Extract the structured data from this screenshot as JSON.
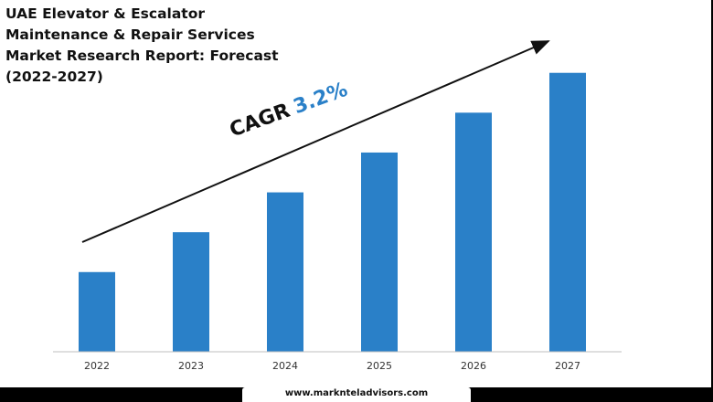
{
  "title_lines": [
    "UAE Elevator & Escalator",
    "Maintenance & Repair Services",
    "Market Research Report: Forecast",
    "(2022-2027)"
  ],
  "cagr": {
    "label": "CAGR",
    "value": "3.2%"
  },
  "footer": {
    "website": "www.marknteladvisors.com"
  },
  "colors": {
    "bar": "#2a80c8",
    "axis": "#bfbfbf",
    "text": "#111111"
  },
  "chart_data": {
    "type": "bar",
    "title": "UAE Elevator & Escalator Maintenance & Repair Services Market Research Report: Forecast (2022-2027)",
    "categories": [
      "2022",
      "2023",
      "2024",
      "2025",
      "2026",
      "2027"
    ],
    "values": [
      1.0,
      1.5,
      2.0,
      2.5,
      3.0,
      3.5
    ],
    "ylim": [
      0,
      3.6
    ],
    "xlabel": "",
    "ylabel": "",
    "grid": false,
    "annotations": [
      "CAGR 3.2%"
    ]
  }
}
